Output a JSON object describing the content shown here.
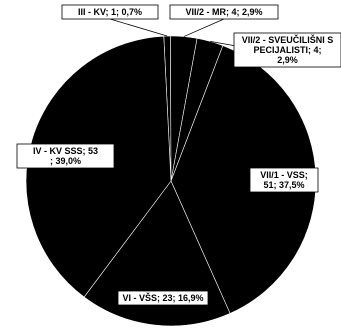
{
  "chart_data": {
    "type": "pie",
    "slices": [
      {
        "label": "III - KV; 1; 0,7%",
        "category": "III - KV",
        "value": 1,
        "percent": 0.7
      },
      {
        "label": "VII/2 - MR; 4; 2,9%",
        "category": "VII/2 - MR",
        "value": 4,
        "percent": 2.9
      },
      {
        "label": "VII/2 - SVEUČILIŠNI SPECIJALISTI; 4; 2,9%",
        "category": "VII/2 - SVEUČILIŠNI SPECIJALISTI",
        "value": 4,
        "percent": 2.9
      },
      {
        "label": "VII/1 - VSS; 51; 37,5%",
        "category": "VII/1 - VSS",
        "value": 51,
        "percent": 37.5
      },
      {
        "label": "VI - VŠS; 23; 16,9%",
        "category": "VI - VŠS",
        "value": 23,
        "percent": 16.9
      },
      {
        "label": "IV - KV SSS; 53; 39,0%",
        "category": "IV - KV SSS",
        "value": 53,
        "percent": 39.0
      }
    ],
    "colors": {
      "slice_fill": "#000000",
      "slice_border": "#ffffff",
      "label_box": "#ffffff",
      "label_text": "#000000"
    }
  }
}
